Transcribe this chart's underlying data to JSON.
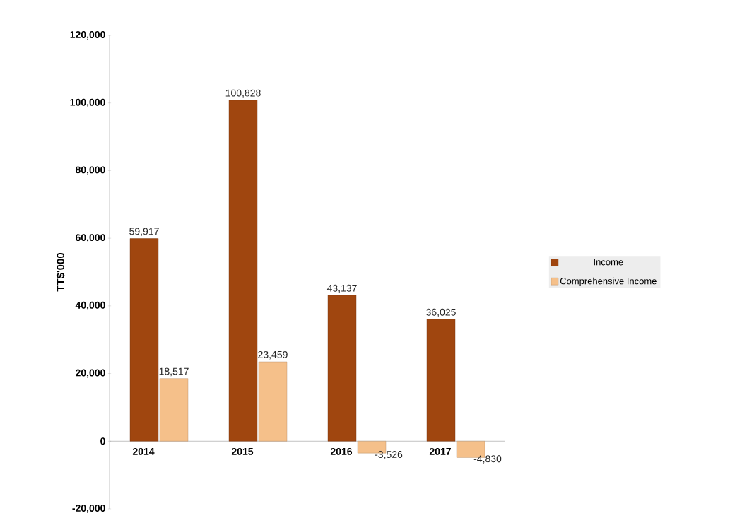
{
  "chart_data": {
    "type": "bar",
    "ylabel": "TT$'000",
    "categories": [
      "2014",
      "2015",
      "2016",
      "2017"
    ],
    "series": [
      {
        "name": "Income",
        "color": "#a0460f",
        "values": [
          59917,
          100828,
          43137,
          36025
        ],
        "value_labels": [
          "59,917",
          "100,828",
          "43,137",
          "36,025"
        ]
      },
      {
        "name": "Comprehensive Income",
        "color": "#f5c08a",
        "values": [
          18517,
          23459,
          -3526,
          -4830
        ],
        "value_labels": [
          "18,517",
          "23,459",
          "-3,526",
          "-4,830"
        ]
      }
    ],
    "ylim": [
      -20000,
      120000
    ],
    "yticks": [
      {
        "value": -20000,
        "label": "-20,000"
      },
      0,
      {
        "value": 20000,
        "label": "20,000"
      },
      {
        "value": 40000,
        "label": "40,000"
      },
      {
        "value": 60000,
        "label": "60,000"
      },
      {
        "value": 80000,
        "label": "80,000"
      },
      {
        "value": 100000,
        "label": "100,000"
      },
      {
        "value": 120000,
        "label": "120,000"
      }
    ],
    "legend": "right",
    "grid": false
  }
}
